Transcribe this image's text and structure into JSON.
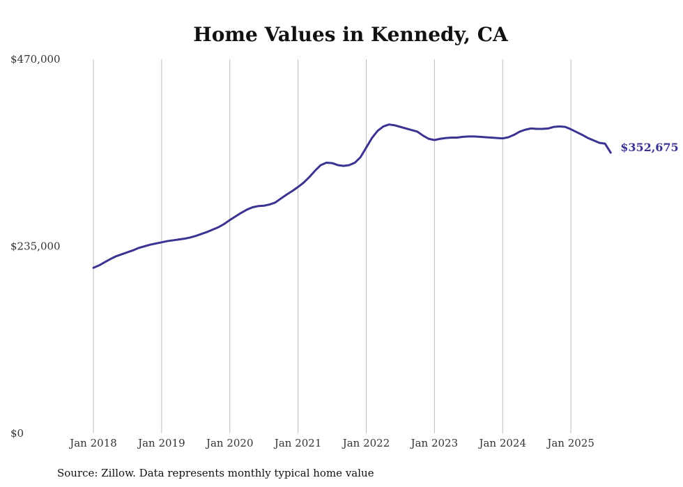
{
  "chart_data": {
    "type": "line",
    "title": "Home Values in Kennedy, CA",
    "source": "Source: Zillow. Data represents monthly typical home value",
    "line_color": "#3b3391",
    "ylim": [
      0,
      470000
    ],
    "xlim": [
      "2018-01",
      "2025-08"
    ],
    "yticks": [
      {
        "value": 0,
        "label": "$0"
      },
      {
        "value": 235000,
        "label": "$235,000"
      },
      {
        "value": 470000,
        "label": "$470,000"
      }
    ],
    "xticks": [
      {
        "date": "2018-01",
        "label": "Jan 2018"
      },
      {
        "date": "2019-01",
        "label": "Jan 2019"
      },
      {
        "date": "2020-01",
        "label": "Jan 2020"
      },
      {
        "date": "2021-01",
        "label": "Jan 2021"
      },
      {
        "date": "2022-01",
        "label": "Jan 2022"
      },
      {
        "date": "2023-01",
        "label": "Jan 2023"
      },
      {
        "date": "2024-01",
        "label": "Jan 2024"
      },
      {
        "date": "2025-01",
        "label": "Jan 2025"
      }
    ],
    "grid": "vertical",
    "end_label": "$352,675",
    "series": [
      {
        "x": [
          "2018-01",
          "2018-02",
          "2018-03",
          "2018-04",
          "2018-05",
          "2018-06",
          "2018-07",
          "2018-08",
          "2018-09",
          "2018-10",
          "2018-11",
          "2018-12",
          "2019-01",
          "2019-02",
          "2019-03",
          "2019-04",
          "2019-05",
          "2019-06",
          "2019-07",
          "2019-08",
          "2019-09",
          "2019-10",
          "2019-11",
          "2019-12",
          "2020-01",
          "2020-02",
          "2020-03",
          "2020-04",
          "2020-05",
          "2020-06",
          "2020-07",
          "2020-08",
          "2020-09",
          "2020-10",
          "2020-11",
          "2020-12",
          "2021-01",
          "2021-02",
          "2021-03",
          "2021-04",
          "2021-05",
          "2021-06",
          "2021-07",
          "2021-08",
          "2021-09",
          "2021-10",
          "2021-11",
          "2021-12",
          "2022-01",
          "2022-02",
          "2022-03",
          "2022-04",
          "2022-05",
          "2022-06",
          "2022-07",
          "2022-08",
          "2022-09",
          "2022-10",
          "2022-11",
          "2022-12",
          "2023-01",
          "2023-02",
          "2023-03",
          "2023-04",
          "2023-05",
          "2023-06",
          "2023-07",
          "2023-08",
          "2023-09",
          "2023-10",
          "2023-11",
          "2023-12",
          "2024-01",
          "2024-02",
          "2024-03",
          "2024-04",
          "2024-05",
          "2024-06",
          "2024-07",
          "2024-08",
          "2024-09",
          "2024-10",
          "2024-11",
          "2024-12",
          "2025-01",
          "2025-02",
          "2025-03",
          "2025-04",
          "2025-05",
          "2025-06",
          "2025-07",
          "2025-08"
        ],
        "y": [
          208000,
          211000,
          215000,
          219000,
          222500,
          225000,
          227500,
          230000,
          233000,
          235000,
          237000,
          238500,
          240000,
          241500,
          242500,
          243500,
          244500,
          246000,
          248000,
          250500,
          253000,
          256000,
          259000,
          263000,
          268000,
          272500,
          277000,
          281000,
          284000,
          285500,
          286000,
          287500,
          290000,
          295000,
          300000,
          304500,
          309500,
          315000,
          322000,
          330000,
          337000,
          340000,
          339500,
          337000,
          336000,
          337000,
          340000,
          347000,
          359000,
          371000,
          380000,
          385500,
          388000,
          387000,
          385000,
          383000,
          381000,
          379000,
          374000,
          370000,
          368500,
          370000,
          371000,
          371500,
          371500,
          372500,
          373000,
          373000,
          372500,
          372000,
          371500,
          371000,
          370500,
          372000,
          375000,
          379000,
          381500,
          383000,
          382500,
          382500,
          383000,
          385000,
          385500,
          385000,
          382000,
          378500,
          375000,
          371000,
          368000,
          365000,
          364000,
          352675
        ]
      }
    ]
  }
}
